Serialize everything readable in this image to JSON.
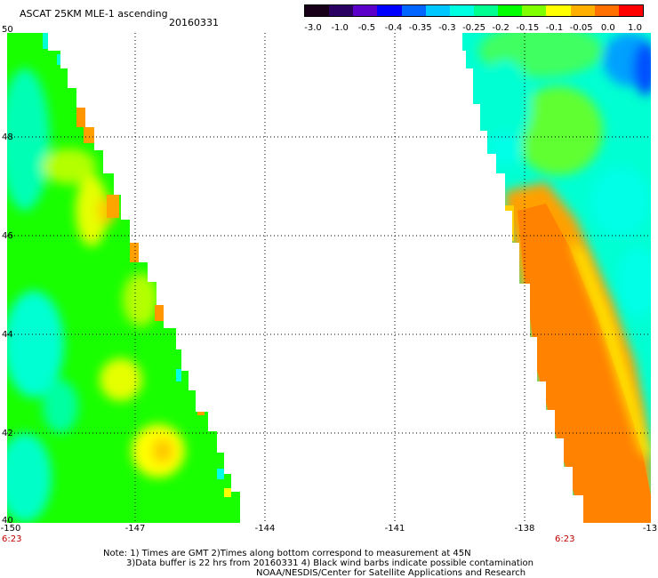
{
  "header": {
    "title": "ASCAT 25KM MLE-1 ascending",
    "date": "20160331"
  },
  "colorbar": {
    "tick_labels": [
      "-3.0",
      "-1.0",
      "-0.5",
      "-0.4",
      "-0.35",
      "-0.3",
      "-0.25",
      "-0.2",
      "-0.15",
      "-0.1",
      "-0.05",
      "0.0",
      "1.0"
    ],
    "colors": [
      "#180018",
      "#2a0060",
      "#5a00c8",
      "#0000ff",
      "#0066ff",
      "#00c8ff",
      "#00ffe0",
      "#00ff90",
      "#00ff00",
      "#80ff00",
      "#ffff00",
      "#ffb000",
      "#ff7000",
      "#ff0000"
    ]
  },
  "map": {
    "lat_labels": [
      "50",
      "48",
      "46",
      "44",
      "42",
      "40"
    ],
    "lon_labels": [
      "-150",
      "-147",
      "-144",
      "-141",
      "-138",
      "-13"
    ],
    "times": {
      "left": "6:23",
      "right": "6:23"
    }
  },
  "notes": [
    "Note: 1) Times are GMT 2)Times along bottom correspond to measurement at 45N",
    "3)Data buffer is 22 hrs from 20160331 4) Black wind barbs indicate possible contamination",
    "NOAA/NESDIS/Center for Satellite Applications and Research"
  ],
  "colors": {
    "orange": "#ff8c00",
    "green": "#18ff00",
    "cyan": "#00ffe6",
    "yellow": "#ffff00",
    "blue": "#0070ff",
    "time_red": "#c00000"
  }
}
